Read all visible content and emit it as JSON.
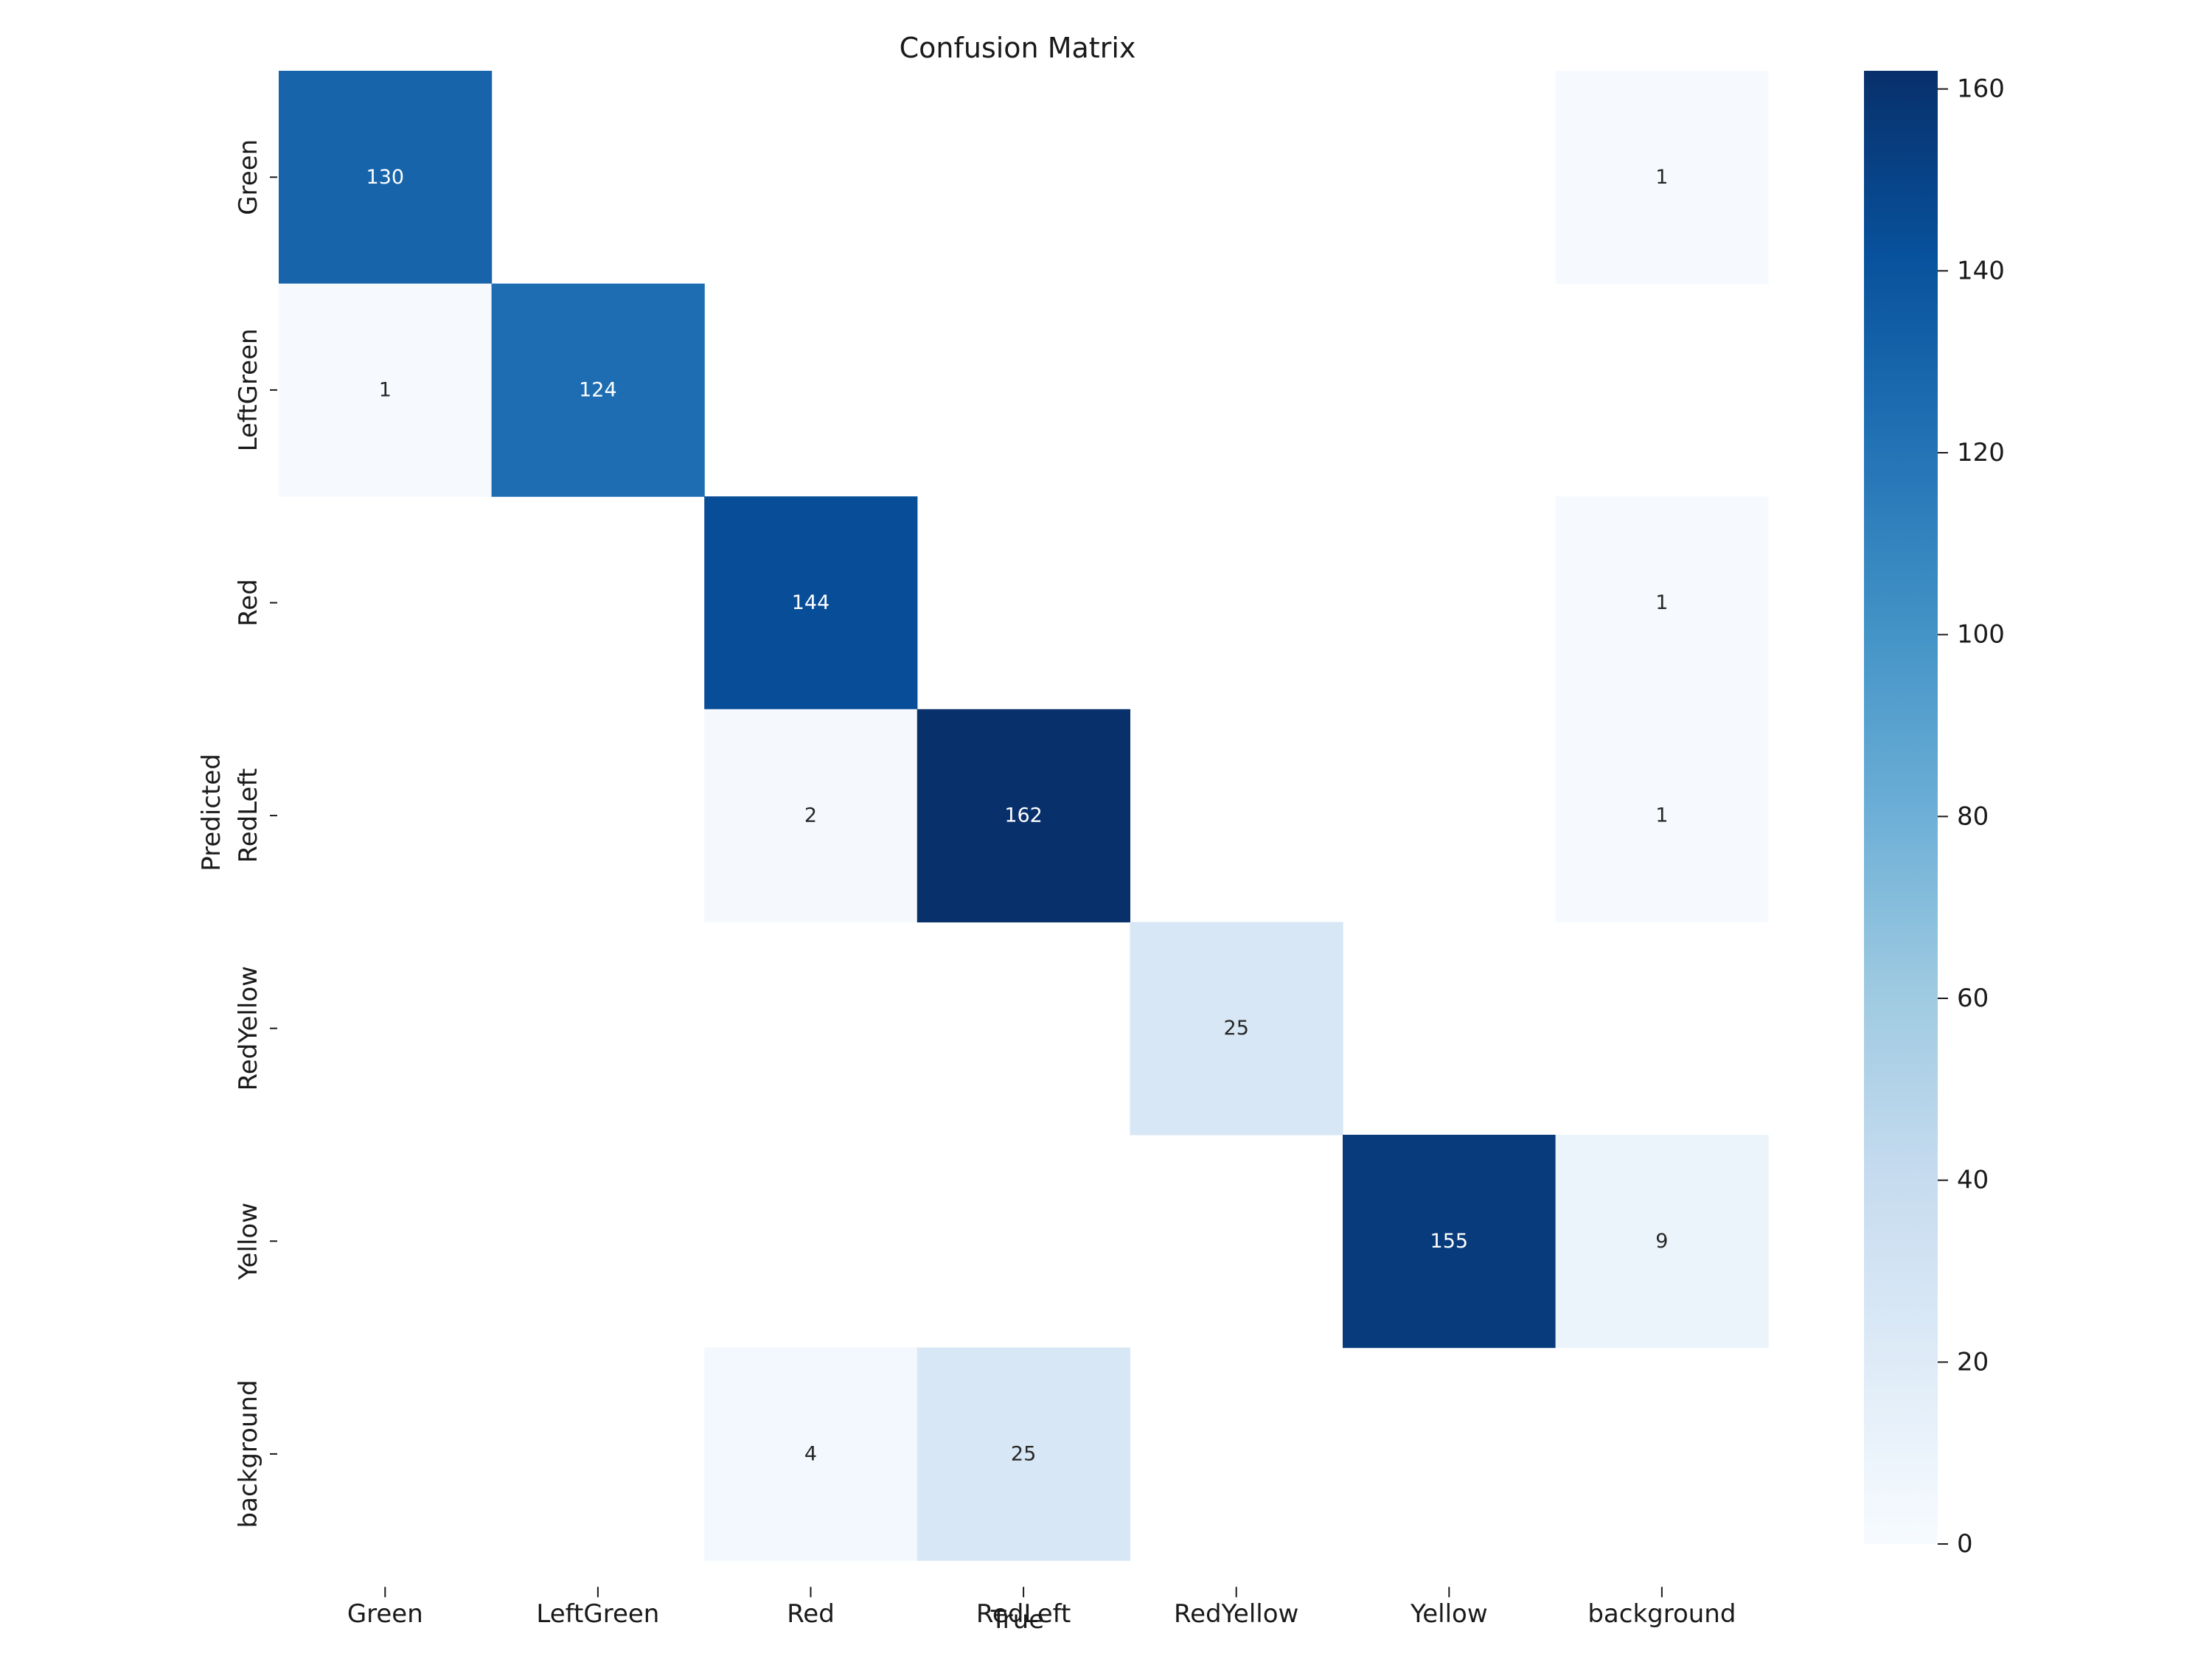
{
  "chart_data": {
    "type": "heatmap",
    "title": "Confusion Matrix",
    "xlabel": "True",
    "ylabel": "Predicted",
    "x_categories": [
      "Green",
      "LeftGreen",
      "Red",
      "RedLeft",
      "RedYellow",
      "Yellow",
      "background"
    ],
    "y_categories": [
      "Green",
      "LeftGreen",
      "Red",
      "RedLeft",
      "RedYellow",
      "Yellow",
      "background"
    ],
    "matrix": [
      [
        130,
        0,
        0,
        0,
        0,
        0,
        1
      ],
      [
        1,
        124,
        0,
        0,
        0,
        0,
        0
      ],
      [
        0,
        0,
        144,
        0,
        0,
        0,
        1
      ],
      [
        0,
        0,
        2,
        162,
        0,
        0,
        1
      ],
      [
        0,
        0,
        0,
        0,
        25,
        0,
        0
      ],
      [
        0,
        0,
        0,
        0,
        0,
        155,
        9
      ],
      [
        0,
        0,
        4,
        25,
        0,
        0,
        0
      ]
    ],
    "colormap": "Blues",
    "zero_cells_blank": true,
    "colorbar": {
      "min": 0,
      "max": 162,
      "ticks": [
        0,
        20,
        40,
        60,
        80,
        100,
        120,
        140,
        160
      ]
    }
  }
}
